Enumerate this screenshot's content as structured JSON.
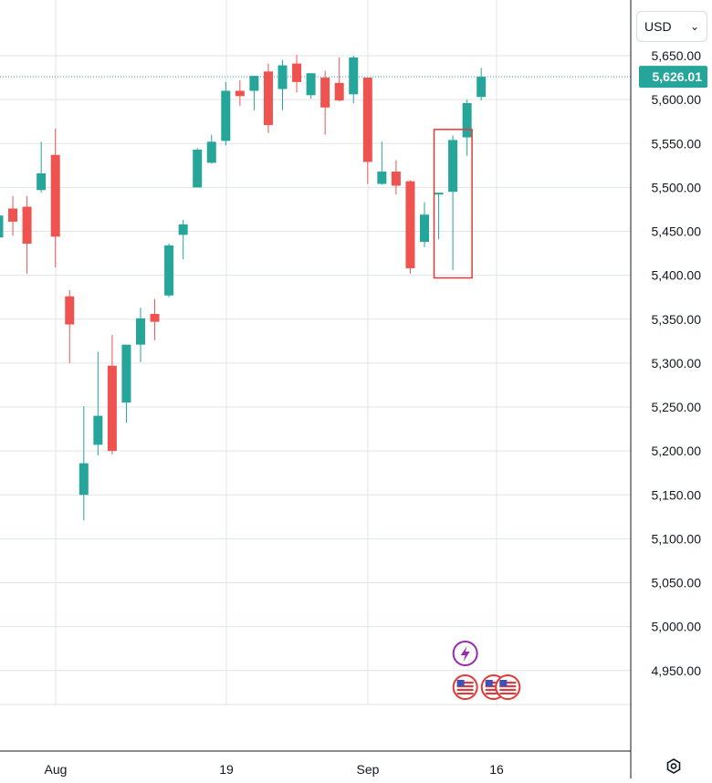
{
  "price_scale": {
    "currency": "USD"
  },
  "chart_data": {
    "type": "candlestick",
    "title": "",
    "xlabel": "",
    "ylabel": "",
    "ylim": [
      4910,
      5690
    ],
    "y_ticks": [
      "5,650.00",
      "5,600.00",
      "5,550.00",
      "5,500.00",
      "5,450.00",
      "5,400.00",
      "5,350.00",
      "5,300.00",
      "5,250.00",
      "5,200.00",
      "5,150.00",
      "5,100.00",
      "5,050.00",
      "5,000.00",
      "4,950.00"
    ],
    "x_ticks": [
      "Aug",
      "19",
      "Sep",
      "16"
    ],
    "last_price": 5626.01,
    "last_price_label": "5,626.01",
    "grid": true,
    "colors": {
      "up": "#26a69a",
      "down": "#ef5350",
      "last_price": "#26a69a",
      "grid": "#e0e3eb",
      "highlight": "#e03b3b",
      "event": "#9c27b0"
    },
    "candles": [
      {
        "o": 5443,
        "h": 5465,
        "l": 5415,
        "c": 5468
      },
      {
        "o": 5476,
        "h": 5490,
        "l": 5445,
        "c": 5461
      },
      {
        "o": 5478,
        "h": 5490,
        "l": 5402,
        "c": 5436
      },
      {
        "o": 5497,
        "h": 5552,
        "l": 5494,
        "c": 5516
      },
      {
        "o": 5537,
        "h": 5567,
        "l": 5409,
        "c": 5444
      },
      {
        "o": 5376,
        "h": 5383,
        "l": 5300,
        "c": 5344
      },
      {
        "o": 5150,
        "h": 5251,
        "l": 5121,
        "c": 5186
      },
      {
        "o": 5207,
        "h": 5313,
        "l": 5195,
        "c": 5240
      },
      {
        "o": 5297,
        "h": 5332,
        "l": 5196,
        "c": 5200
      },
      {
        "o": 5255,
        "h": 5320,
        "l": 5232,
        "c": 5321
      },
      {
        "o": 5321,
        "h": 5363,
        "l": 5301,
        "c": 5351
      },
      {
        "o": 5356,
        "h": 5373,
        "l": 5326,
        "c": 5347
      },
      {
        "o": 5377,
        "h": 5436,
        "l": 5375,
        "c": 5434
      },
      {
        "o": 5446,
        "h": 5463,
        "l": 5418,
        "c": 5458
      },
      {
        "o": 5500,
        "h": 5545,
        "l": 5500,
        "c": 5543
      },
      {
        "o": 5528,
        "h": 5560,
        "l": 5527,
        "c": 5552
      },
      {
        "o": 5553,
        "h": 5620,
        "l": 5548,
        "c": 5610
      },
      {
        "o": 5610,
        "h": 5622,
        "l": 5593,
        "c": 5604
      },
      {
        "o": 5610,
        "h": 5627,
        "l": 5588,
        "c": 5627
      },
      {
        "o": 5632,
        "h": 5641,
        "l": 5562,
        "c": 5571
      },
      {
        "o": 5612,
        "h": 5645,
        "l": 5588,
        "c": 5639
      },
      {
        "o": 5641,
        "h": 5651,
        "l": 5608,
        "c": 5620
      },
      {
        "o": 5605,
        "h": 5630,
        "l": 5601,
        "c": 5630
      },
      {
        "o": 5625,
        "h": 5633,
        "l": 5560,
        "c": 5591
      },
      {
        "o": 5619,
        "h": 5648,
        "l": 5598,
        "c": 5599
      },
      {
        "o": 5606,
        "h": 5650,
        "l": 5596,
        "c": 5648
      },
      {
        "o": 5625,
        "h": 5625,
        "l": 5504,
        "c": 5529
      },
      {
        "o": 5504,
        "h": 5552,
        "l": 5503,
        "c": 5518
      },
      {
        "o": 5518,
        "h": 5531,
        "l": 5492,
        "c": 5502
      },
      {
        "o": 5507,
        "h": 5508,
        "l": 5402,
        "c": 5408
      },
      {
        "o": 5438,
        "h": 5483,
        "l": 5432,
        "c": 5469
      },
      {
        "o": 5492,
        "h": 5493,
        "l": 5441,
        "c": 5494
      },
      {
        "o": 5495,
        "h": 5559,
        "l": 5406,
        "c": 5554
      },
      {
        "o": 5557,
        "h": 5600,
        "l": 5536,
        "c": 5596
      },
      {
        "o": 5603,
        "h": 5636,
        "l": 5599,
        "c": 5626
      }
    ],
    "highlight_range": {
      "from_index": 31,
      "to_index": 32,
      "low": 5397,
      "high": 5566
    },
    "events": [
      {
        "index": 33,
        "type": "earnings",
        "icon": "lightning-icon"
      },
      {
        "index": 33,
        "type": "economic",
        "icon": "us-flag-icon"
      },
      {
        "index": 35,
        "type": "economic",
        "icon": "us-flag-icon"
      },
      {
        "index": 36,
        "type": "economic",
        "icon": "us-flag-icon"
      }
    ]
  }
}
